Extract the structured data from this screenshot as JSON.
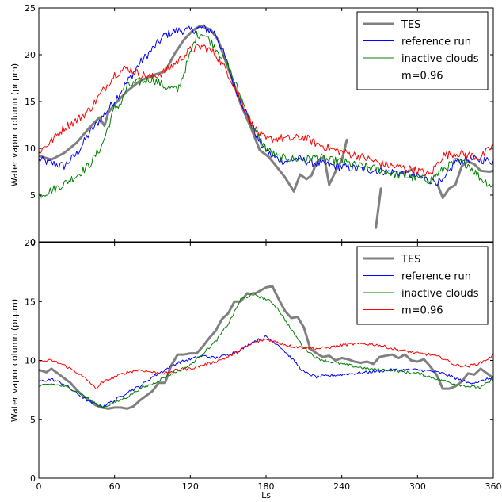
{
  "figure": {
    "xlabel": "Ls"
  },
  "chart_data": [
    {
      "type": "line",
      "title": "",
      "xlabel": "",
      "ylabel": "Water vapor column (pr.μm)",
      "xlim": [
        0,
        360
      ],
      "ylim": [
        0,
        25
      ],
      "xticks": [
        0,
        60,
        120,
        180,
        240,
        300,
        360
      ],
      "yticks": [
        0,
        5,
        10,
        15,
        20,
        25
      ],
      "xtick_labels_visible": false,
      "grid": false,
      "legend_position": "top-right",
      "legend": [
        "TES",
        "reference run",
        "inactive clouds",
        "m=0.96"
      ],
      "series": [
        {
          "name": "TES",
          "color": "#808080",
          "segments": [
            {
              "x": [
                0,
                10,
                20,
                30,
                40,
                48,
                52,
                55,
                60,
                70,
                80,
                90,
                100,
                108,
                115,
                122,
                128,
                132,
                136,
                142,
                148,
                155,
                160,
                168,
                175,
                182,
                188,
                195,
                202,
                207,
                212,
                216,
                220,
                226,
                230,
                236,
                240,
                244
              ],
              "y": [
                9.2,
                8.8,
                9.5,
                10.6,
                12.2,
                13.3,
                12.4,
                13.8,
                14.7,
                16.1,
                17.2,
                17.8,
                18.2,
                20.2,
                21.6,
                22.6,
                23.1,
                22.9,
                22.7,
                21.6,
                19.3,
                16.7,
                14.7,
                12.2,
                9.8,
                9.1,
                8.1,
                6.9,
                5.4,
                7.2,
                6.7,
                7.1,
                8.5,
                9.1,
                6.1,
                7.8,
                8.7,
                10.9
              ]
            },
            {
              "x": [
                267,
                271
              ],
              "y": [
                1.5,
                5.7
              ]
            },
            {
              "x": [
                288,
                292,
                297
              ],
              "y": [
                7.4,
                7.5,
                7.8
              ]
            },
            {
              "x": [
                316,
                320,
                325,
                330,
                335,
                340,
                345,
                350,
                357,
                360
              ],
              "y": [
                6.1,
                4.7,
                5.7,
                6.1,
                8.1,
                8.6,
                8.3,
                7.6,
                7.5,
                7.6
              ]
            }
          ]
        },
        {
          "name": "reference run",
          "color": "#0000ff",
          "noise": 0.45,
          "segments": [
            {
              "x": [
                0,
                10,
                20,
                30,
                40,
                50,
                60,
                70,
                80,
                90,
                100,
                110,
                120,
                130,
                140,
                148,
                155,
                165,
                175,
                185,
                195,
                205,
                215,
                225,
                240,
                255,
                270,
                285,
                300,
                310,
                320,
                330,
                340,
                350,
                360
              ],
              "y": [
                8.8,
                8.4,
                8.1,
                9.4,
                11.6,
                13.3,
                15.1,
                17.1,
                19.1,
                20.6,
                22.1,
                22.6,
                22.6,
                22.9,
                22.3,
                19.6,
                16.6,
                13.6,
                10.6,
                9.1,
                8.6,
                8.9,
                8.5,
                8.3,
                8.0,
                7.8,
                7.6,
                7.4,
                7.0,
                6.6,
                6.3,
                8.6,
                8.8,
                8.8,
                8.6
              ]
            }
          ]
        },
        {
          "name": "inactive clouds",
          "color": "#008000",
          "noise": 0.45,
          "segments": [
            {
              "x": [
                0,
                10,
                20,
                30,
                40,
                50,
                55,
                60,
                65,
                70,
                80,
                90,
                100,
                110,
                115,
                120,
                125,
                130,
                135,
                140,
                150,
                160,
                170,
                180,
                190,
                200,
                210,
                220,
                230,
                240,
                250,
                260,
                270,
                280,
                290,
                300,
                310,
                320,
                330,
                340,
                350,
                360
              ],
              "y": [
                5.0,
                5.5,
                6.2,
                7.1,
                8.2,
                10.3,
                12.3,
                14.3,
                14.8,
                16.6,
                17.1,
                17.4,
                16.6,
                16.2,
                18.1,
                20.1,
                22.1,
                22.3,
                21.6,
                20.8,
                18.8,
                15.5,
                12.0,
                10.0,
                9.0,
                8.9,
                8.8,
                9.1,
                8.7,
                8.6,
                8.2,
                8.0,
                7.7,
                7.3,
                7.0,
                6.8,
                6.6,
                7.7,
                8.6,
                8.3,
                6.8,
                5.9
              ]
            }
          ]
        },
        {
          "name": "m=0.96",
          "color": "#ff0000",
          "noise": 0.45,
          "segments": [
            {
              "x": [
                0,
                10,
                20,
                30,
                40,
                50,
                60,
                70,
                80,
                90,
                100,
                110,
                120,
                130,
                140,
                150,
                160,
                170,
                180,
                190,
                200,
                210,
                220,
                230,
                240,
                250,
                260,
                270,
                280,
                290,
                300,
                310,
                320,
                330,
                340,
                350,
                360
              ],
              "y": [
                9.6,
                10.8,
                12.2,
                13.0,
                14.1,
                16.0,
                17.9,
                18.6,
                17.9,
                17.6,
                18.2,
                19.3,
                20.5,
                20.9,
                20.1,
                18.0,
                15.2,
                12.2,
                10.9,
                11.1,
                11.0,
                11.2,
                10.5,
                10.0,
                9.6,
                9.3,
                8.9,
                8.4,
                8.1,
                7.9,
                7.6,
                7.2,
                9.2,
                9.5,
                9.3,
                9.0,
                10.3
              ]
            }
          ]
        }
      ]
    },
    {
      "type": "line",
      "title": "",
      "xlabel": "Ls",
      "ylabel": "Water vapor column (pr.μm)",
      "xlim": [
        0,
        360
      ],
      "ylim": [
        0,
        20
      ],
      "xticks": [
        0,
        60,
        120,
        180,
        240,
        300,
        360
      ],
      "yticks": [
        0,
        5,
        10,
        15,
        20
      ],
      "xtick_labels_visible": true,
      "grid": false,
      "legend_position": "top-right",
      "legend": [
        "TES",
        "reference run",
        "inactive clouds",
        "m=0.96"
      ],
      "series": [
        {
          "name": "TES",
          "color": "#808080",
          "segments": [
            {
              "x": [
                0,
                6,
                10,
                15,
                20,
                25,
                30,
                35,
                40,
                45,
                50,
                55,
                60,
                65,
                70,
                75,
                80,
                85,
                90,
                95,
                100,
                105,
                110,
                115,
                120,
                125,
                130,
                135,
                140,
                145,
                150,
                155,
                160,
                165,
                170,
                175,
                180,
                185,
                190,
                195,
                200,
                205,
                210,
                215,
                220,
                225,
                230,
                235,
                240,
                245,
                250,
                255,
                260,
                265,
                270,
                275,
                280,
                285,
                290,
                295,
                300,
                305,
                310,
                315,
                320,
                325,
                330,
                335,
                340,
                345,
                350,
                355,
                360
              ],
              "y": [
                9.2,
                9.0,
                9.3,
                8.9,
                8.5,
                8.1,
                7.5,
                7.0,
                6.6,
                6.2,
                6.0,
                5.9,
                6.0,
                6.0,
                5.9,
                6.1,
                6.6,
                7.0,
                7.4,
                8.1,
                8.1,
                9.6,
                10.5,
                10.5,
                10.6,
                10.6,
                11.2,
                11.9,
                12.5,
                13.5,
                14.0,
                15.0,
                15.0,
                15.7,
                15.6,
                15.9,
                16.2,
                16.3,
                15.2,
                14.2,
                13.6,
                13.7,
                12.8,
                11.0,
                10.6,
                10.3,
                10.4,
                10.0,
                10.2,
                10.1,
                9.9,
                9.8,
                9.9,
                9.7,
                10.3,
                10.4,
                10.5,
                10.2,
                10.5,
                10.0,
                9.9,
                10.1,
                9.5,
                8.8,
                7.6,
                7.6,
                7.8,
                8.2,
                8.9,
                8.8,
                9.3,
                8.9,
                8.5
              ]
            }
          ]
        },
        {
          "name": "reference run",
          "color": "#0000ff",
          "noise": 0.12,
          "segments": [
            {
              "x": [
                0,
                10,
                20,
                30,
                40,
                50,
                60,
                70,
                80,
                90,
                100,
                110,
                120,
                130,
                140,
                150,
                160,
                170,
                180,
                190,
                200,
                210,
                220,
                230,
                240,
                250,
                260,
                270,
                280,
                290,
                300,
                310,
                320,
                330,
                340,
                350,
                360
              ],
              "y": [
                8.2,
                8.4,
                8.0,
                7.2,
                6.5,
                6.1,
                6.6,
                7.3,
                7.8,
                8.6,
                9.2,
                9.8,
                10.1,
                10.4,
                10.2,
                10.5,
                10.9,
                11.6,
                12.0,
                11.3,
                10.2,
                9.0,
                8.6,
                8.7,
                8.8,
                8.9,
                9.0,
                9.1,
                9.2,
                9.2,
                9.2,
                9.1,
                8.9,
                8.5,
                8.1,
                8.2,
                8.6
              ]
            }
          ]
        },
        {
          "name": "inactive clouds",
          "color": "#008000",
          "noise": 0.12,
          "segments": [
            {
              "x": [
                0,
                10,
                20,
                30,
                40,
                50,
                60,
                70,
                80,
                90,
                100,
                110,
                120,
                130,
                140,
                150,
                155,
                160,
                165,
                170,
                175,
                180,
                185,
                190,
                200,
                210,
                220,
                230,
                240,
                250,
                260,
                270,
                280,
                290,
                300,
                310,
                320,
                330,
                340,
                350,
                360
              ],
              "y": [
                7.8,
                8.0,
                7.8,
                7.4,
                6.7,
                6.0,
                6.4,
                6.9,
                7.6,
                8.0,
                8.6,
                9.1,
                9.6,
                10.6,
                11.6,
                13.1,
                14.1,
                15.2,
                15.4,
                15.7,
                15.4,
                15.2,
                14.9,
                14.3,
                12.6,
                11.1,
                10.2,
                9.9,
                9.7,
                9.5,
                9.3,
                9.2,
                9.2,
                9.0,
                8.9,
                8.6,
                8.3,
                8.0,
                7.8,
                7.7,
                8.4
              ]
            }
          ]
        },
        {
          "name": "m=0.96",
          "color": "#ff0000",
          "noise": 0.12,
          "segments": [
            {
              "x": [
                0,
                10,
                20,
                30,
                40,
                45,
                50,
                60,
                70,
                80,
                90,
                100,
                110,
                120,
                130,
                140,
                150,
                160,
                170,
                180,
                190,
                200,
                210,
                220,
                230,
                240,
                250,
                260,
                270,
                280,
                290,
                300,
                310,
                320,
                330,
                340,
                350,
                360
              ],
              "y": [
                9.9,
                10.0,
                9.6,
                9.0,
                8.2,
                7.6,
                8.1,
                8.6,
                9.0,
                9.2,
                9.0,
                8.9,
                9.2,
                9.3,
                9.6,
                9.9,
                10.3,
                10.9,
                11.5,
                11.8,
                11.5,
                11.2,
                11.1,
                11.0,
                11.1,
                11.3,
                11.4,
                11.4,
                11.3,
                11.0,
                10.8,
                10.6,
                10.5,
                10.2,
                9.6,
                9.5,
                9.8,
                10.4
              ]
            }
          ]
        }
      ]
    }
  ]
}
